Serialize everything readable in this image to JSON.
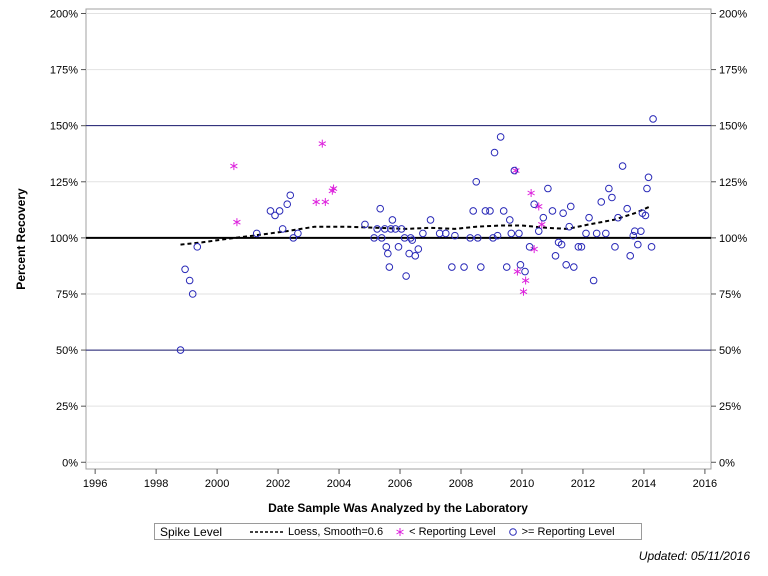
{
  "chart_data": {
    "type": "scatter",
    "xlabel": "Date Sample Was Analyzed by the Laboratory",
    "ylabel": "Percent Recovery",
    "xlim": [
      1995.7,
      2016.2
    ],
    "ylim": [
      -3,
      202
    ],
    "x_ticks": [
      1996,
      1998,
      2000,
      2002,
      2004,
      2006,
      2008,
      2010,
      2012,
      2014,
      2016
    ],
    "x_tick_labels": [
      "1996",
      "1998",
      "2000",
      "2002",
      "2004",
      "2006",
      "2008",
      "2010",
      "2012",
      "2014",
      "2016"
    ],
    "y_ticks": [
      0,
      25,
      50,
      75,
      100,
      125,
      150,
      175,
      200
    ],
    "y_tick_labels": [
      "0%",
      "25%",
      "50%",
      "75%",
      "100%",
      "125%",
      "150%",
      "175%",
      "200%"
    ],
    "reference_lines": [
      {
        "y": 50,
        "style": "thin",
        "color": "#1a1a6e"
      },
      {
        "y": 100,
        "style": "thick",
        "color": "#000000"
      },
      {
        "y": 150,
        "style": "thin",
        "color": "#1a1a6e"
      }
    ],
    "grid": true,
    "legend_title": "Spike Level",
    "series": [
      {
        "name": "Loess, Smooth=0.6",
        "kind": "line",
        "color": "#000000",
        "x": [
          1998.8,
          1999.5,
          2000.3,
          2001.2,
          2002.3,
          2003.2,
          2004.2,
          2005.2,
          2006.2,
          2007.0,
          2007.8,
          2008.5,
          2009.3,
          2010.0,
          2010.8,
          2011.5,
          2012.2,
          2013.0,
          2013.7,
          2014.2
        ],
        "y": [
          97,
          98,
          99.5,
          101,
          103,
          105,
          105,
          104.5,
          104,
          104.5,
          104,
          105,
          105.5,
          105.5,
          104.5,
          104,
          106,
          108,
          111,
          114
        ]
      },
      {
        "name": "< Reporting Level",
        "kind": "scatter",
        "marker": "asterisk",
        "color": "#dd22dd",
        "x": [
          2000.55,
          2000.65,
          2003.25,
          2003.45,
          2003.55,
          2003.78,
          2003.82,
          2009.8,
          2009.85,
          2010.05,
          2010.12,
          2010.3,
          2010.4,
          2010.55,
          2010.65
        ],
        "y": [
          132,
          107,
          116,
          142,
          116,
          121,
          122,
          130,
          85,
          76,
          81,
          120,
          95,
          114,
          106
        ]
      },
      {
        "name": ">= Reporting Level",
        "kind": "scatter",
        "marker": "circle",
        "color": "#2a2ab8",
        "x": [
          1998.8,
          1998.95,
          1999.1,
          1999.2,
          1999.35,
          2001.3,
          2001.75,
          2001.9,
          2002.05,
          2002.15,
          2002.3,
          2002.4,
          2002.5,
          2002.65,
          2004.85,
          2005.15,
          2005.25,
          2005.35,
          2005.4,
          2005.5,
          2005.55,
          2005.6,
          2005.65,
          2005.7,
          2005.75,
          2005.85,
          2005.95,
          2006.05,
          2006.15,
          2006.2,
          2006.3,
          2006.35,
          2006.4,
          2006.5,
          2006.6,
          2006.75,
          2007.0,
          2007.3,
          2007.5,
          2007.7,
          2007.8,
          2008.1,
          2008.3,
          2008.4,
          2008.5,
          2008.55,
          2008.65,
          2008.8,
          2008.95,
          2009.05,
          2009.1,
          2009.2,
          2009.3,
          2009.4,
          2009.5,
          2009.6,
          2009.65,
          2009.75,
          2009.9,
          2009.95,
          2010.1,
          2010.25,
          2010.4,
          2010.55,
          2010.7,
          2010.85,
          2011.0,
          2011.1,
          2011.2,
          2011.3,
          2011.35,
          2011.45,
          2011.55,
          2011.6,
          2011.7,
          2011.85,
          2011.95,
          2012.1,
          2012.2,
          2012.35,
          2012.45,
          2012.6,
          2012.75,
          2012.85,
          2012.95,
          2013.05,
          2013.15,
          2013.3,
          2013.45,
          2013.55,
          2013.65,
          2013.7,
          2013.8,
          2013.9,
          2013.95,
          2014.05,
          2014.1,
          2014.15,
          2014.25,
          2014.3
        ],
        "y": [
          50,
          86,
          81,
          75,
          96,
          102,
          112,
          110,
          112,
          104,
          115,
          119,
          100,
          102,
          106,
          100,
          104,
          113,
          100,
          104,
          96,
          93,
          87,
          104,
          108,
          104,
          96,
          104,
          100,
          83,
          93,
          100,
          99,
          92,
          95,
          102,
          108,
          102,
          102,
          87,
          101,
          87,
          100,
          112,
          125,
          100,
          87,
          112,
          112,
          100,
          138,
          101,
          145,
          112,
          87,
          108,
          102,
          130,
          102,
          88,
          85,
          96,
          115,
          103,
          109,
          122,
          112,
          92,
          98,
          97,
          111,
          88,
          105,
          114,
          87,
          96,
          96,
          102,
          109,
          81,
          102,
          116,
          102,
          122,
          118,
          96,
          109,
          132,
          113,
          92,
          101,
          103,
          97,
          103,
          111,
          110,
          122,
          127,
          96,
          153
        ]
      }
    ]
  },
  "footer": {
    "updated": "Updated: 05/11/2016"
  }
}
